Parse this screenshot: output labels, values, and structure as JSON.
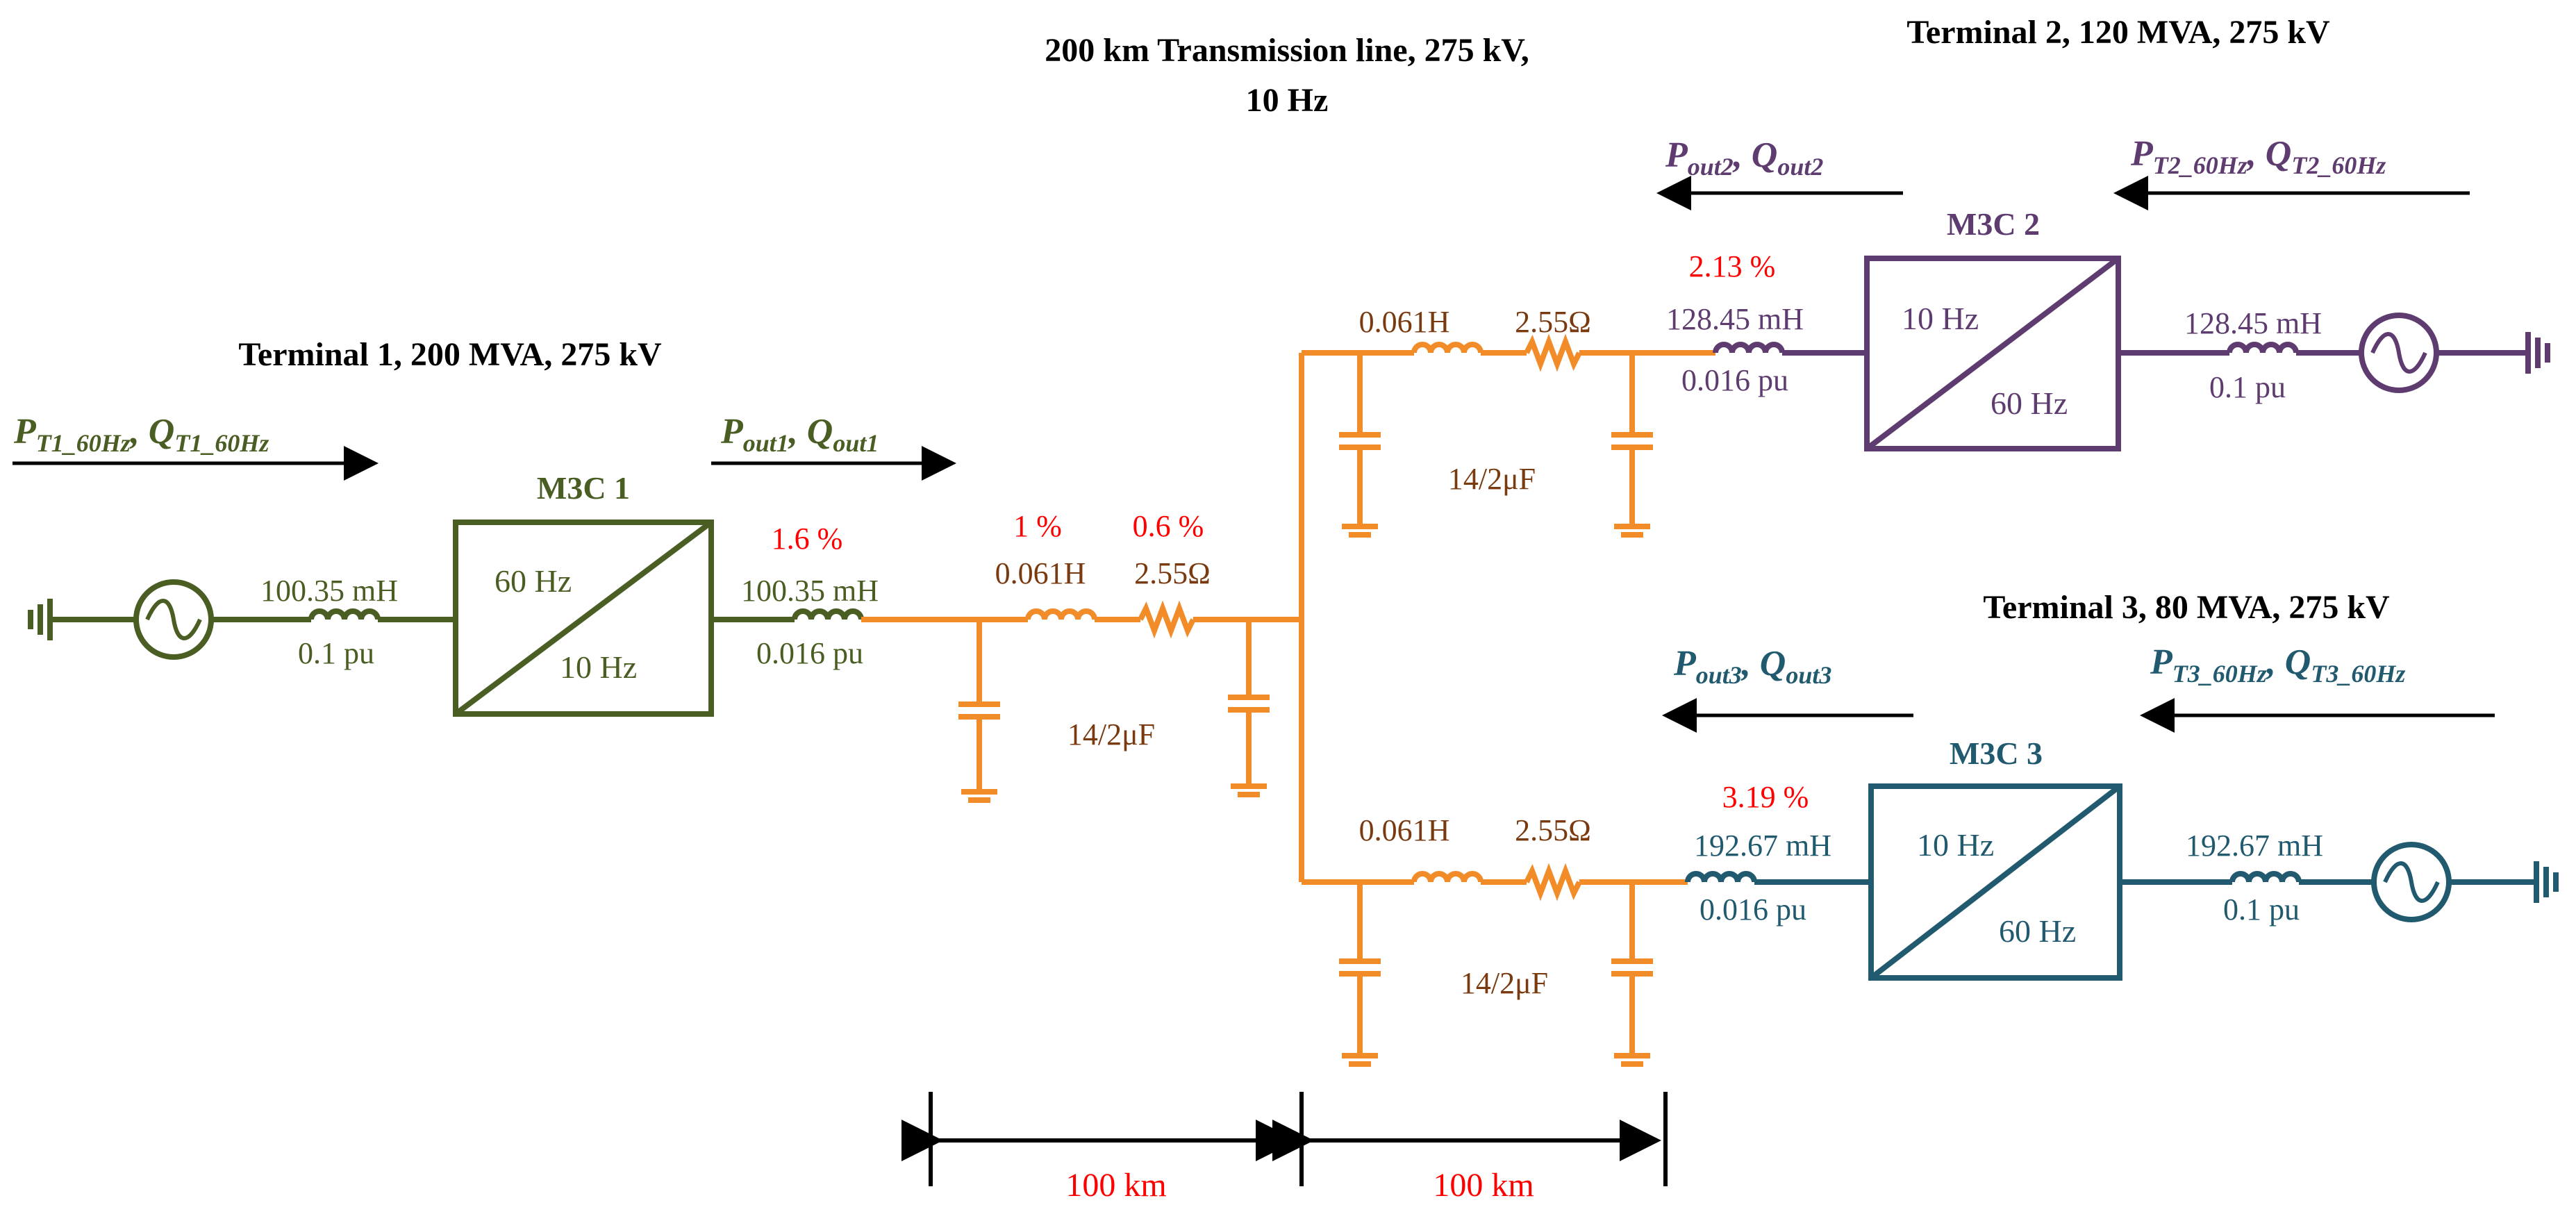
{
  "titles": {
    "line_title_1": "200 km Transmission line, 275 kV,",
    "line_title_2": "10 Hz",
    "terminal1": "Terminal 1, 200 MVA, 275 kV",
    "terminal2": "Terminal 2, 120 MVA, 275 kV",
    "terminal3": "Terminal 3, 80 MVA, 275 kV"
  },
  "flows": {
    "t1_in": {
      "p": "P",
      "p_sub": "T1_60Hz",
      "sep": ", ",
      "q": "Q",
      "q_sub": "T1_60Hz"
    },
    "t1_out": {
      "p": "P",
      "p_sub": "out1",
      "sep": ", ",
      "q": "Q",
      "q_sub": "out1"
    },
    "t2_in": {
      "p": "P",
      "p_sub": "T2_60Hz",
      "sep": ", ",
      "q": "Q",
      "q_sub": "T2_60Hz"
    },
    "t2_out": {
      "p": "P",
      "p_sub": "out2",
      "sep": ", ",
      "q": "Q",
      "q_sub": "out2"
    },
    "t3_in": {
      "p": "P",
      "p_sub": "T3_60Hz",
      "sep": ", ",
      "q": "Q",
      "q_sub": "T3_60Hz"
    },
    "t3_out": {
      "p": "P",
      "p_sub": "out3",
      "sep": ", ",
      "q": "Q",
      "q_sub": "out3"
    }
  },
  "converters": {
    "m3c1": {
      "label": "M3C 1",
      "freq_in": "60 Hz",
      "freq_out": "10 Hz"
    },
    "m3c2": {
      "label": "M3C 2",
      "freq_in": "10 Hz",
      "freq_out": "60 Hz"
    },
    "m3c3": {
      "label": "M3C 3",
      "freq_in": "10 Hz",
      "freq_out": "60 Hz"
    }
  },
  "t1": {
    "grid_l": "100.35 mH",
    "grid_pu": "0.1 pu",
    "conv_pct": "1.6 %",
    "conv_l": "100.35 mH",
    "conv_pu": "0.016 pu"
  },
  "t2": {
    "grid_l": "128.45 mH",
    "grid_pu": "0.1 pu",
    "conv_pct": "2.13 %",
    "conv_l": "128.45 mH",
    "conv_pu": "0.016 pu"
  },
  "t3": {
    "grid_l": "192.67 mH",
    "grid_pu": "0.1 pu",
    "conv_pct": "3.19 %",
    "conv_l": "192.67 mH",
    "conv_pu": "0.016 pu"
  },
  "line": {
    "seg1_l_pct": "1 %",
    "seg1_r_pct": "0.6 %",
    "seg1_l": "0.061H",
    "seg1_r": "2.55Ω",
    "seg1_c": "14/2μF",
    "seg2_l": "0.061H",
    "seg2_r": "2.55Ω",
    "seg2_c": "14/2μF",
    "seg3_l": "0.061H",
    "seg3_r": "2.55Ω",
    "seg3_c": "14/2μF"
  },
  "distances": {
    "d1": "100 km",
    "d2": "100 km"
  },
  "colors": {
    "terminal1": "#4a5d23",
    "terminal2": "#5e3c70",
    "terminal3": "#215a6e",
    "line": "#f28c28",
    "line_text": "#7a3a10",
    "highlight": "#ff0000"
  }
}
